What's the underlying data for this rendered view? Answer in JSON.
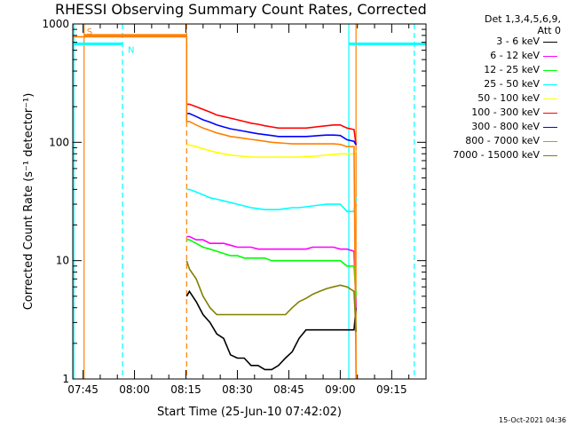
{
  "chart_data": {
    "type": "line",
    "title": "RHESSI Observing Summary Count Rates, Corrected",
    "xlabel": "Start Time (25-Jun-10 07:42:02)",
    "ylabel": "Corrected Count Rate (s⁻¹ detector⁻¹)",
    "yscale": "log",
    "ylim": [
      1,
      1000
    ],
    "xlim_minutes_after_0742": [
      0,
      103
    ],
    "xticks": [
      {
        "label": "07:45",
        "minute": 3
      },
      {
        "label": "08:00",
        "minute": 18
      },
      {
        "label": "08:15",
        "minute": 33
      },
      {
        "label": "08:30",
        "minute": 48
      },
      {
        "label": "08:45",
        "minute": 63
      },
      {
        "label": "09:00",
        "minute": 78
      },
      {
        "label": "09:15",
        "minute": 93
      }
    ],
    "yticks": [
      {
        "label": "1",
        "value": 1
      },
      {
        "label": "10",
        "value": 10
      },
      {
        "label": "100",
        "value": 100
      },
      {
        "label": "1000",
        "value": 1000
      }
    ],
    "detector_label": "Det 1,3,4,5,6,9,",
    "attenuator_label": "Att 0",
    "series": [
      {
        "name": "3 - 6 keV",
        "color": "#000000",
        "x": [
          33.2,
          34,
          36,
          38,
          40,
          42,
          44,
          46,
          48,
          50,
          52,
          54,
          56,
          58,
          60,
          62,
          64,
          66,
          68,
          70,
          72,
          74,
          76,
          78,
          80,
          82,
          82.6
        ],
        "y": [
          5,
          5.5,
          4.5,
          3.5,
          3,
          2.4,
          2.2,
          1.6,
          1.5,
          1.5,
          1.3,
          1.3,
          1.2,
          1.2,
          1.3,
          1.5,
          1.7,
          2.2,
          2.6,
          2.6,
          2.6,
          2.6,
          2.6,
          2.6,
          2.6,
          2.6,
          4
        ]
      },
      {
        "name": "6 - 12 keV",
        "color": "#ff00ff",
        "x": [
          33.2,
          34,
          36,
          38,
          40,
          42,
          44,
          46,
          48,
          50,
          52,
          54,
          56,
          58,
          60,
          62,
          64,
          66,
          68,
          70,
          72,
          74,
          76,
          78,
          80,
          82,
          82.6
        ],
        "y": [
          16,
          16,
          15,
          15,
          14,
          14,
          14,
          13.5,
          13,
          13,
          13,
          12.5,
          12.5,
          12.5,
          12.5,
          12.5,
          12.5,
          12.5,
          12.5,
          13,
          13,
          13,
          13,
          12.5,
          12.5,
          12,
          4
        ]
      },
      {
        "name": "12 - 25 keV",
        "color": "#00ff00",
        "x": [
          33.2,
          34,
          36,
          38,
          40,
          42,
          44,
          46,
          48,
          50,
          52,
          54,
          56,
          58,
          60,
          62,
          64,
          66,
          68,
          70,
          72,
          74,
          76,
          78,
          80,
          82,
          82.6
        ],
        "y": [
          15,
          15,
          14,
          13,
          12.5,
          12,
          11.5,
          11,
          11,
          10.5,
          10.5,
          10.5,
          10.5,
          10,
          10,
          10,
          10,
          10,
          10,
          10,
          10,
          10,
          10,
          10,
          9,
          9,
          5
        ]
      },
      {
        "name": "25 - 50 keV",
        "color": "#00ffff",
        "x": [
          33.2,
          34,
          36,
          38,
          40,
          42,
          44,
          46,
          48,
          50,
          52,
          54,
          56,
          58,
          60,
          62,
          64,
          66,
          68,
          70,
          72,
          74,
          76,
          78,
          80,
          82,
          82.6
        ],
        "y": [
          40,
          40,
          38,
          36,
          34,
          33,
          32,
          31,
          30,
          29,
          28,
          27.5,
          27,
          27,
          27,
          27.5,
          28,
          28,
          28.5,
          29,
          29.5,
          30,
          30,
          30,
          26,
          26,
          34
        ]
      },
      {
        "name": "50 - 100 keV",
        "color": "#ffff00",
        "x": [
          33.2,
          34,
          36,
          38,
          40,
          42,
          44,
          46,
          48,
          50,
          52,
          54,
          56,
          58,
          60,
          62,
          64,
          66,
          68,
          70,
          72,
          74,
          76,
          78,
          80,
          82,
          82.6
        ],
        "y": [
          95,
          95,
          92,
          88,
          85,
          82,
          80,
          78,
          77,
          76,
          75,
          75,
          75,
          75,
          75,
          75,
          75,
          75,
          76,
          76,
          77,
          78,
          79,
          80,
          80,
          80,
          84
        ]
      },
      {
        "name": "100 - 300 keV",
        "color": "#ff0000",
        "x": [
          33.2,
          34,
          36,
          38,
          40,
          42,
          44,
          46,
          48,
          50,
          52,
          54,
          56,
          58,
          60,
          62,
          64,
          66,
          68,
          70,
          72,
          74,
          76,
          78,
          80,
          82,
          82.6
        ],
        "y": [
          210,
          210,
          200,
          190,
          180,
          170,
          165,
          160,
          155,
          150,
          145,
          142,
          138,
          135,
          132,
          132,
          132,
          132,
          132,
          134,
          136,
          138,
          140,
          140,
          132,
          128,
          95
        ]
      },
      {
        "name": "300 - 800 keV",
        "color": "#0000ff",
        "x": [
          33.2,
          34,
          36,
          38,
          40,
          42,
          44,
          46,
          48,
          50,
          52,
          54,
          56,
          58,
          60,
          62,
          64,
          66,
          68,
          70,
          72,
          74,
          76,
          78,
          80,
          82,
          82.6
        ],
        "y": [
          175,
          175,
          165,
          155,
          148,
          140,
          135,
          130,
          127,
          124,
          121,
          118,
          116,
          114,
          112,
          112,
          112,
          112,
          112,
          113,
          114,
          115,
          115,
          114,
          105,
          102,
          95
        ]
      },
      {
        "name": "800 - 7000 keV",
        "color": "#ff8000",
        "x": [
          0,
          33.2,
          33.2,
          34,
          36,
          38,
          40,
          42,
          44,
          46,
          48,
          50,
          52,
          54,
          56,
          58,
          60,
          62,
          64,
          66,
          68,
          70,
          72,
          74,
          76,
          78,
          80,
          82,
          82.6
        ],
        "y": [
          780,
          780,
          150,
          150,
          140,
          132,
          126,
          120,
          116,
          112,
          110,
          108,
          106,
          104,
          102,
          100,
          99,
          98,
          97,
          97,
          97,
          97,
          97,
          97,
          97,
          96,
          92,
          92,
          1
        ]
      },
      {
        "name": "7000 - 15000 keV",
        "color": "#808000",
        "x": [
          33.2,
          34,
          36,
          38,
          40,
          42,
          44,
          46,
          48,
          50,
          52,
          54,
          56,
          58,
          60,
          62,
          64,
          66,
          68,
          70,
          72,
          74,
          76,
          78,
          80,
          82,
          82.6
        ],
        "y": [
          10,
          8.5,
          7,
          5,
          4,
          3.5,
          3.5,
          3.5,
          3.5,
          3.5,
          3.5,
          3.5,
          3.5,
          3.5,
          3.5,
          3.5,
          4,
          4.5,
          4.8,
          5.2,
          5.5,
          5.8,
          6,
          6.2,
          6,
          5.5,
          2.5
        ]
      }
    ],
    "flags": [
      {
        "label": "S",
        "color": "#ff8000",
        "level": 800,
        "x_start": 3.3,
        "x_end": 33.2
      },
      {
        "label": "N",
        "color": "#00ffff",
        "level": 680,
        "segments": [
          [
            0,
            14.5
          ],
          [
            80.5,
            103
          ]
        ]
      }
    ],
    "vertical_markers": [
      {
        "minute": 0.3,
        "color": "#00ffff",
        "style": "solid"
      },
      {
        "minute": 3.3,
        "color": "#ff8000",
        "style": "solid"
      },
      {
        "minute": 14.5,
        "color": "#00ffff",
        "style": "dashed"
      },
      {
        "minute": 33.2,
        "color": "#ff8000",
        "style": "dashed"
      },
      {
        "minute": 80.5,
        "color": "#00ffff",
        "style": "solid"
      },
      {
        "minute": 82.6,
        "color": "#ff8000",
        "style": "solid"
      },
      {
        "minute": 99.6,
        "color": "#00ffff",
        "style": "dashed"
      }
    ]
  },
  "footer": {
    "timestamp": "15-Oct-2021 04:36"
  }
}
